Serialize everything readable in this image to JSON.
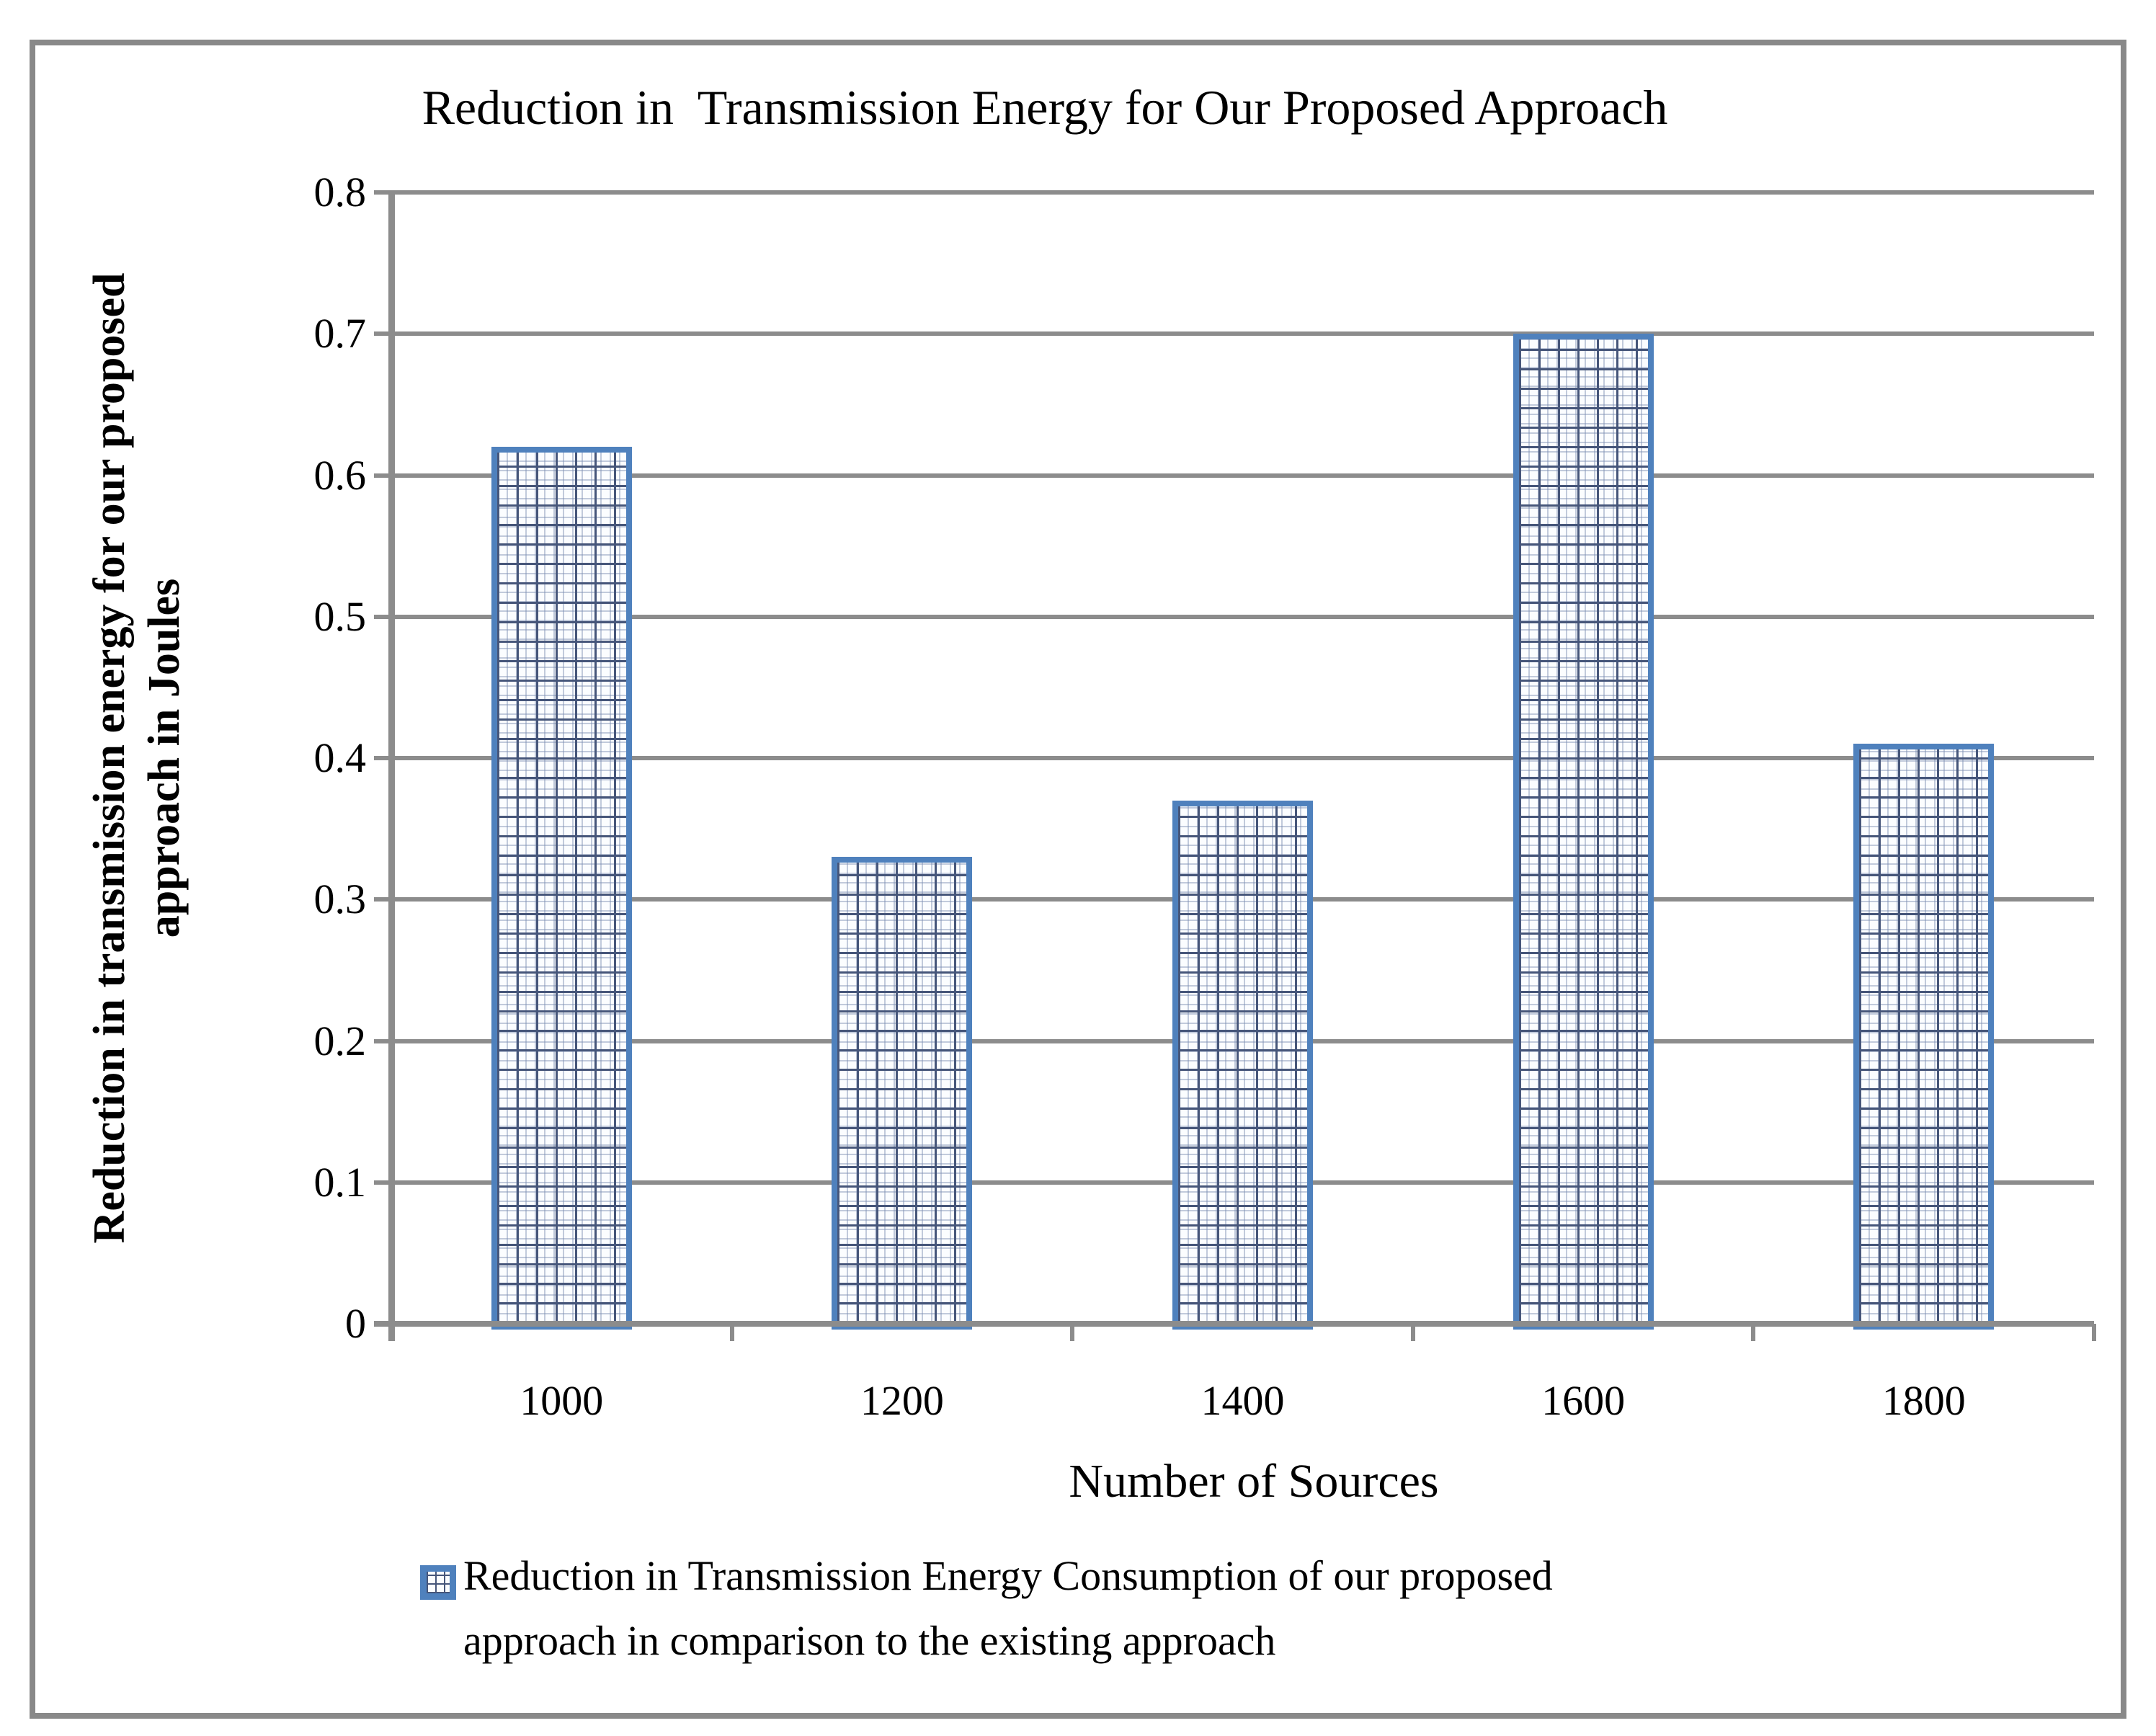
{
  "figure": {
    "border_color": "#898989",
    "background": "#ffffff"
  },
  "chart_data": {
    "type": "bar",
    "title": "Reduction in  Transmission Energy for Our Proposed Approach",
    "categories": [
      "1000",
      "1200",
      "1400",
      "1600",
      "1800"
    ],
    "values": [
      0.62,
      0.33,
      0.37,
      0.7,
      0.41
    ],
    "series_name": "Reduction in Transmission Energy Consumption of our proposed approach in comparison to the existing approach",
    "xlabel": "Number of Sources",
    "ylabel_lines": [
      "Reduction in transmission energy for our proposed",
      "approach in Joules"
    ],
    "ylim": [
      0,
      0.8
    ],
    "ytick_labels": [
      "0.8",
      "0.7",
      "0.6",
      "0.5",
      "0.4",
      "0.3",
      "0.2",
      "0.1",
      "0"
    ],
    "grid": true,
    "legend_position": "bottom",
    "legend_lines": [
      "Reduction in Transmission Energy Consumption of our proposed",
      "approach in comparison to the existing approach"
    ],
    "colors": {
      "bar_border": "#4f81bd",
      "bar_fill": "#fbfdff",
      "bar_pattern_line": "#46567a",
      "gridline": "#8c8c8c",
      "axis": "#8c8c8c",
      "text": "#000000"
    }
  }
}
